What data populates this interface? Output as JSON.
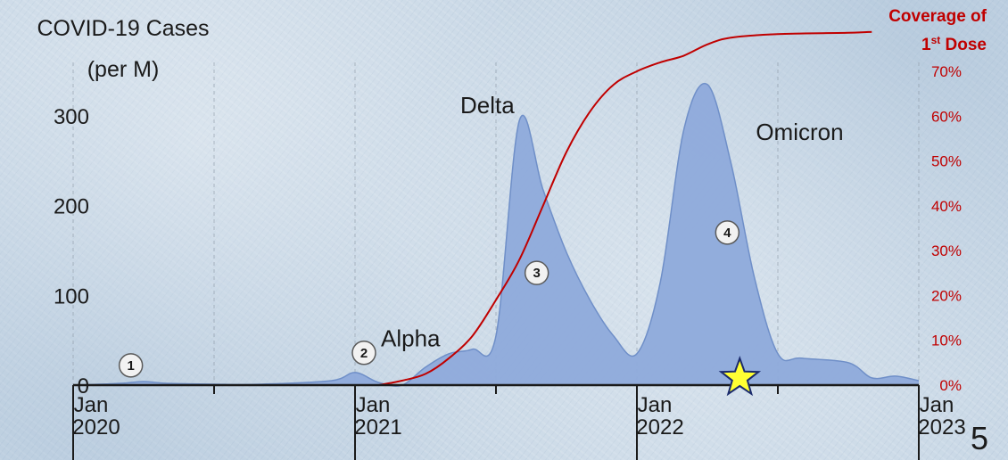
{
  "chart_data": {
    "type": "area",
    "left_axis": {
      "title_line1": "COVID-19 Cases",
      "title_line2": "(per M)",
      "ticks": [
        0,
        100,
        200,
        300
      ],
      "range": [
        0,
        400
      ]
    },
    "right_axis": {
      "title_line1": "Coverage of",
      "title_line2": "1",
      "title_line2_sup": "st",
      "title_line2_rest": " Dose",
      "ticks": [
        "0%",
        "10%",
        "20%",
        "30%",
        "40%",
        "50%",
        "60%",
        "70%"
      ],
      "range": [
        0,
        70
      ]
    },
    "x_axis": {
      "range": [
        "2020-01",
        "2023-01"
      ],
      "labels": [
        {
          "month": "Jan",
          "year": "2020",
          "date": "2020-01"
        },
        {
          "month": "Jan",
          "year": "2021",
          "date": "2021-01"
        },
        {
          "month": "Jan",
          "year": "2022",
          "date": "2022-01"
        },
        {
          "month": "Jan",
          "year": "2023",
          "date": "2023-01"
        }
      ],
      "minor_ticks": [
        "2020-07",
        "2021-07",
        "2022-07"
      ]
    },
    "series": [
      {
        "name": "COVID-19 Cases",
        "color": "#8eaadb",
        "points": [
          [
            "2020-01",
            0
          ],
          [
            "2020-03",
            2
          ],
          [
            "2020-04",
            4
          ],
          [
            "2020-05",
            2
          ],
          [
            "2020-07",
            1
          ],
          [
            "2020-09",
            1
          ],
          [
            "2020-12",
            5
          ],
          [
            "2021-01",
            14
          ],
          [
            "2021-02",
            3
          ],
          [
            "2021-03",
            0
          ],
          [
            "2021-04",
            20
          ],
          [
            "2021-05",
            35
          ],
          [
            "2021-06",
            40
          ],
          [
            "2021-07",
            55
          ],
          [
            "2021-08",
            295
          ],
          [
            "2021-09",
            218
          ],
          [
            "2021-10",
            148
          ],
          [
            "2021-11",
            95
          ],
          [
            "2021-12",
            55
          ],
          [
            "2022-01",
            35
          ],
          [
            "2022-02",
            115
          ],
          [
            "2022-03",
            285
          ],
          [
            "2022-04",
            335
          ],
          [
            "2022-05",
            248
          ],
          [
            "2022-06",
            120
          ],
          [
            "2022-07",
            35
          ],
          [
            "2022-08",
            30
          ],
          [
            "2022-10",
            25
          ],
          [
            "2022-11",
            8
          ],
          [
            "2022-12",
            10
          ],
          [
            "2023-01",
            5
          ]
        ]
      },
      {
        "name": "Coverage of 1st Dose",
        "color": "#c00000",
        "points": [
          [
            "2021-02",
            0
          ],
          [
            "2021-03",
            1
          ],
          [
            "2021-04",
            2.5
          ],
          [
            "2021-05",
            6
          ],
          [
            "2021-06",
            11
          ],
          [
            "2021-07",
            19
          ],
          [
            "2021-08",
            28
          ],
          [
            "2021-09",
            40
          ],
          [
            "2021-10",
            52
          ],
          [
            "2021-11",
            61
          ],
          [
            "2021-12",
            67
          ],
          [
            "2022-01",
            70
          ],
          [
            "2022-02",
            72
          ],
          [
            "2022-03",
            73.5
          ],
          [
            "2022-04",
            76
          ],
          [
            "2022-05",
            77.5
          ],
          [
            "2022-07",
            78.3
          ],
          [
            "2022-10",
            78.6
          ],
          [
            "2022-11",
            78.8
          ]
        ]
      }
    ],
    "annotations": [
      {
        "text": "Alpha",
        "date": "2021-04",
        "value": 55
      },
      {
        "text": "Delta",
        "date": "2021-07",
        "value": 315
      },
      {
        "text": "Omicron",
        "date": "2022-05",
        "value": 285
      }
    ],
    "markers": [
      {
        "label": "1",
        "date": "2020-03",
        "value": 22
      },
      {
        "label": "2",
        "date": "2021-01",
        "value": 36
      },
      {
        "label": "3",
        "date": "2021-09",
        "value": 125
      },
      {
        "label": "4",
        "date": "2022-05",
        "value": 170
      }
    ],
    "star": {
      "date": "2022-05",
      "value": 0,
      "color": "#ffff33"
    }
  },
  "slide_number": "5"
}
